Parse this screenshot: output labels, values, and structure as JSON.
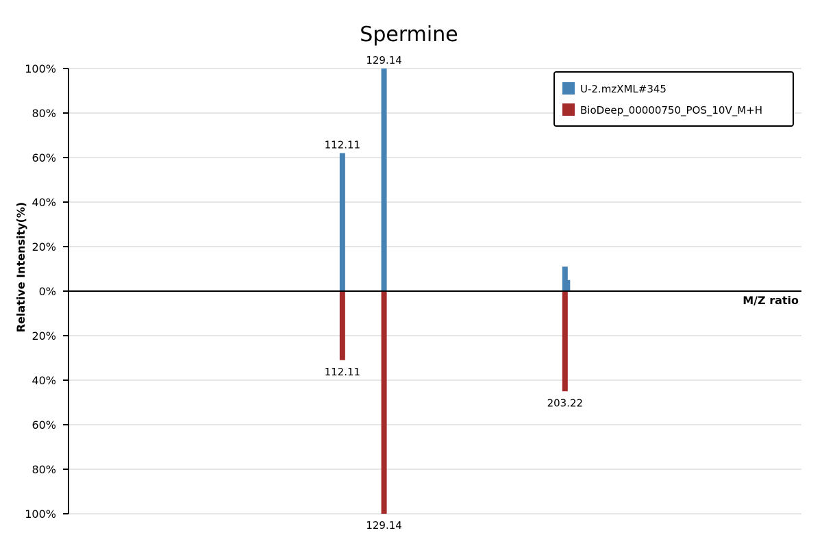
{
  "chart_data": {
    "type": "bar",
    "title": "Spermine",
    "xlabel": "M/Z ratio",
    "ylabel": "Relative Intensity(%)",
    "ylim": [
      -100,
      100
    ],
    "xlim": [
      0,
      300
    ],
    "y_ticks": [
      "100%",
      "80%",
      "60%",
      "40%",
      "20%",
      "0%",
      "20%",
      "40%",
      "60%",
      "80%",
      "100%"
    ],
    "grid": true,
    "legend_position": "top-right",
    "series": [
      {
        "name": "U-2.mzXML#345",
        "color": "#4682b4",
        "direction": "up",
        "peaks": [
          {
            "mz": 112.11,
            "intensity": 62,
            "label": "112.11"
          },
          {
            "mz": 129.14,
            "intensity": 100,
            "label": "129.14"
          },
          {
            "mz": 203.22,
            "intensity": 11,
            "label": ""
          },
          {
            "mz": 204.2,
            "intensity": 5,
            "label": ""
          }
        ]
      },
      {
        "name": "BioDeep_00000750_POS_10V_M+H",
        "color": "#a52a2a",
        "direction": "down",
        "peaks": [
          {
            "mz": 112.11,
            "intensity": 31,
            "label": "112.11"
          },
          {
            "mz": 129.14,
            "intensity": 100,
            "label": "129.14"
          },
          {
            "mz": 203.22,
            "intensity": 45,
            "label": "203.22"
          }
        ]
      }
    ]
  }
}
